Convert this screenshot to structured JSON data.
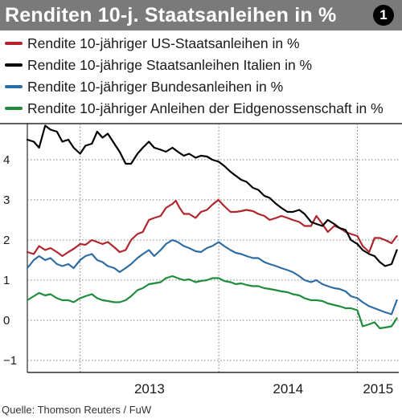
{
  "title": "Renditen 10-j. Staatsanleihen in %",
  "badge": "1",
  "source": "Quelle: Thomson Reuters / FuW",
  "chart_data": {
    "type": "line",
    "title": "Renditen 10-j. Staatsanleihen in %",
    "ylim": [
      -1.3,
      4.9
    ],
    "xlim": [
      "2012-08-15",
      "2015-04-20"
    ],
    "y_ticks": [
      4,
      3,
      2,
      1,
      0,
      -1
    ],
    "x_tick_labels": [
      "2013",
      "2014",
      "2015"
    ],
    "x_year_boundaries": [
      "2013-01-01",
      "2014-01-01",
      "2015-01-01"
    ],
    "grid": "horizontal dotted",
    "legend_position": "top",
    "series": [
      {
        "name": "Rendite 10-jähriger US-Staatsanleihen in %",
        "color": "#b0262c",
        "x": [
          "2012-08-15",
          "2012-09-01",
          "2012-09-15",
          "2012-10-01",
          "2012-10-15",
          "2012-11-01",
          "2012-11-15",
          "2012-12-01",
          "2012-12-15",
          "2013-01-01",
          "2013-01-15",
          "2013-02-01",
          "2013-02-15",
          "2013-03-01",
          "2013-03-15",
          "2013-04-01",
          "2013-04-15",
          "2013-05-01",
          "2013-05-15",
          "2013-06-01",
          "2013-06-15",
          "2013-07-01",
          "2013-07-15",
          "2013-08-01",
          "2013-08-15",
          "2013-09-01",
          "2013-09-10",
          "2013-09-20",
          "2013-10-01",
          "2013-10-15",
          "2013-11-01",
          "2013-11-15",
          "2013-12-01",
          "2013-12-15",
          "2013-12-31",
          "2014-01-15",
          "2014-02-01",
          "2014-02-15",
          "2014-03-01",
          "2014-03-15",
          "2014-04-01",
          "2014-04-15",
          "2014-05-01",
          "2014-05-15",
          "2014-06-01",
          "2014-06-15",
          "2014-07-01",
          "2014-07-15",
          "2014-08-01",
          "2014-08-15",
          "2014-09-01",
          "2014-09-15",
          "2014-10-01",
          "2014-10-15",
          "2014-11-01",
          "2014-11-15",
          "2014-12-01",
          "2014-12-15",
          "2015-01-01",
          "2015-01-15",
          "2015-02-01",
          "2015-02-15",
          "2015-03-01",
          "2015-03-15",
          "2015-04-01",
          "2015-04-15"
        ],
        "y": [
          1.7,
          1.65,
          1.85,
          1.75,
          1.8,
          1.7,
          1.6,
          1.7,
          1.78,
          1.9,
          1.88,
          2.0,
          1.95,
          1.9,
          1.95,
          1.82,
          1.7,
          1.75,
          2.0,
          2.15,
          2.2,
          2.5,
          2.55,
          2.6,
          2.8,
          2.9,
          2.98,
          2.8,
          2.65,
          2.65,
          2.55,
          2.7,
          2.75,
          2.88,
          3.0,
          2.85,
          2.7,
          2.7,
          2.72,
          2.75,
          2.72,
          2.65,
          2.6,
          2.5,
          2.55,
          2.6,
          2.55,
          2.5,
          2.45,
          2.35,
          2.35,
          2.6,
          2.4,
          2.2,
          2.35,
          2.3,
          2.2,
          2.15,
          2.1,
          1.85,
          1.7,
          2.05,
          2.05,
          2.0,
          1.92,
          2.1
        ]
      },
      {
        "name": "Rendite 10-jährige Staatsanleihen Italien in %",
        "color": "#000000",
        "x": [
          "2012-08-15",
          "2012-09-01",
          "2012-09-15",
          "2012-10-01",
          "2012-10-15",
          "2012-11-01",
          "2012-11-15",
          "2012-12-01",
          "2012-12-15",
          "2013-01-01",
          "2013-01-15",
          "2013-02-01",
          "2013-02-15",
          "2013-03-01",
          "2013-03-15",
          "2013-04-01",
          "2013-04-15",
          "2013-05-01",
          "2013-05-15",
          "2013-06-01",
          "2013-06-15",
          "2013-07-01",
          "2013-07-15",
          "2013-08-01",
          "2013-08-15",
          "2013-09-01",
          "2013-09-15",
          "2013-10-01",
          "2013-10-15",
          "2013-11-01",
          "2013-11-15",
          "2013-12-01",
          "2013-12-15",
          "2014-01-01",
          "2014-01-15",
          "2014-02-01",
          "2014-02-15",
          "2014-03-01",
          "2014-03-15",
          "2014-04-01",
          "2014-04-15",
          "2014-05-01",
          "2014-05-15",
          "2014-06-01",
          "2014-06-15",
          "2014-07-01",
          "2014-07-15",
          "2014-08-01",
          "2014-08-15",
          "2014-09-01",
          "2014-09-15",
          "2014-10-01",
          "2014-10-15",
          "2014-11-01",
          "2014-11-15",
          "2014-12-01",
          "2014-12-15",
          "2015-01-01",
          "2015-01-15",
          "2015-02-01",
          "2015-02-15",
          "2015-03-01",
          "2015-03-15",
          "2015-04-01",
          "2015-04-15"
        ],
        "y": [
          4.5,
          4.45,
          4.3,
          4.85,
          4.75,
          4.7,
          4.45,
          4.5,
          4.3,
          4.15,
          4.35,
          4.4,
          4.7,
          4.55,
          4.65,
          4.4,
          4.2,
          3.9,
          3.9,
          4.15,
          4.3,
          4.45,
          4.3,
          4.25,
          4.2,
          4.3,
          4.2,
          4.1,
          4.15,
          4.05,
          4.1,
          4.08,
          4.0,
          3.95,
          3.85,
          3.7,
          3.6,
          3.5,
          3.45,
          3.3,
          3.25,
          3.1,
          3.05,
          2.9,
          2.8,
          2.7,
          2.7,
          2.75,
          2.65,
          2.45,
          2.4,
          2.35,
          2.5,
          2.4,
          2.3,
          2.25,
          2.0,
          1.9,
          1.75,
          1.65,
          1.6,
          1.45,
          1.35,
          1.4,
          1.75
        ]
      },
      {
        "name": "Rendite 10-jähriger Bundesanleihen in %",
        "color": "#2e6ca4",
        "x": [
          "2012-08-15",
          "2012-09-01",
          "2012-09-15",
          "2012-10-01",
          "2012-10-15",
          "2012-11-01",
          "2012-11-15",
          "2012-12-01",
          "2012-12-15",
          "2013-01-01",
          "2013-01-15",
          "2013-02-01",
          "2013-02-15",
          "2013-03-01",
          "2013-03-15",
          "2013-04-01",
          "2013-04-15",
          "2013-05-01",
          "2013-05-15",
          "2013-06-01",
          "2013-06-15",
          "2013-07-01",
          "2013-07-15",
          "2013-08-01",
          "2013-08-15",
          "2013-09-01",
          "2013-09-15",
          "2013-10-01",
          "2013-10-15",
          "2013-11-01",
          "2013-11-15",
          "2013-12-01",
          "2013-12-15",
          "2014-01-01",
          "2014-01-15",
          "2014-02-01",
          "2014-02-15",
          "2014-03-01",
          "2014-03-15",
          "2014-04-01",
          "2014-04-15",
          "2014-05-01",
          "2014-05-15",
          "2014-06-01",
          "2014-06-15",
          "2014-07-01",
          "2014-07-15",
          "2014-08-01",
          "2014-08-15",
          "2014-09-01",
          "2014-09-15",
          "2014-10-01",
          "2014-10-15",
          "2014-11-01",
          "2014-11-15",
          "2014-12-01",
          "2014-12-15",
          "2015-01-01",
          "2015-01-15",
          "2015-02-01",
          "2015-02-15",
          "2015-03-01",
          "2015-03-15",
          "2015-04-01",
          "2015-04-15"
        ],
        "y": [
          1.3,
          1.5,
          1.6,
          1.5,
          1.55,
          1.4,
          1.35,
          1.4,
          1.3,
          1.5,
          1.6,
          1.65,
          1.5,
          1.45,
          1.35,
          1.3,
          1.2,
          1.3,
          1.4,
          1.55,
          1.65,
          1.75,
          1.6,
          1.75,
          1.9,
          2.0,
          1.95,
          1.85,
          1.8,
          1.72,
          1.7,
          1.8,
          1.85,
          1.95,
          1.85,
          1.75,
          1.68,
          1.65,
          1.6,
          1.55,
          1.55,
          1.45,
          1.4,
          1.35,
          1.3,
          1.25,
          1.2,
          1.1,
          1.0,
          0.95,
          1.0,
          0.9,
          0.85,
          0.8,
          0.78,
          0.72,
          0.6,
          0.55,
          0.45,
          0.35,
          0.3,
          0.25,
          0.2,
          0.15,
          0.5
        ]
      },
      {
        "name": "Rendite 10-jähriger Anleihen der Eidgenossenschaft in %",
        "color": "#1e8c3a",
        "x": [
          "2012-08-15",
          "2012-09-01",
          "2012-09-15",
          "2012-10-01",
          "2012-10-15",
          "2012-11-01",
          "2012-11-15",
          "2012-12-01",
          "2012-12-15",
          "2013-01-01",
          "2013-01-15",
          "2013-02-01",
          "2013-02-15",
          "2013-03-01",
          "2013-03-15",
          "2013-04-01",
          "2013-04-15",
          "2013-05-01",
          "2013-05-15",
          "2013-06-01",
          "2013-06-15",
          "2013-07-01",
          "2013-07-15",
          "2013-08-01",
          "2013-08-15",
          "2013-09-01",
          "2013-09-15",
          "2013-10-01",
          "2013-10-15",
          "2013-11-01",
          "2013-11-15",
          "2013-12-01",
          "2013-12-15",
          "2014-01-01",
          "2014-01-15",
          "2014-02-01",
          "2014-02-15",
          "2014-03-01",
          "2014-03-15",
          "2014-04-01",
          "2014-04-15",
          "2014-05-01",
          "2014-05-15",
          "2014-06-01",
          "2014-06-15",
          "2014-07-01",
          "2014-07-15",
          "2014-08-01",
          "2014-08-15",
          "2014-09-01",
          "2014-09-15",
          "2014-10-01",
          "2014-10-15",
          "2014-11-01",
          "2014-11-15",
          "2014-12-01",
          "2014-12-15",
          "2015-01-01",
          "2015-01-15",
          "2015-02-01",
          "2015-02-15",
          "2015-03-01",
          "2015-03-15",
          "2015-04-01",
          "2015-04-15"
        ],
        "y": [
          0.5,
          0.6,
          0.68,
          0.62,
          0.65,
          0.55,
          0.5,
          0.5,
          0.45,
          0.55,
          0.6,
          0.65,
          0.55,
          0.5,
          0.48,
          0.45,
          0.45,
          0.5,
          0.6,
          0.75,
          0.8,
          0.9,
          0.92,
          0.95,
          1.05,
          1.1,
          1.05,
          1.0,
          1.02,
          0.95,
          0.98,
          1.0,
          1.05,
          1.05,
          0.98,
          0.95,
          0.9,
          0.92,
          0.88,
          0.85,
          0.85,
          0.8,
          0.78,
          0.75,
          0.72,
          0.7,
          0.65,
          0.62,
          0.55,
          0.5,
          0.5,
          0.48,
          0.42,
          0.38,
          0.35,
          0.3,
          0.3,
          0.25,
          -0.15,
          -0.1,
          -0.05,
          -0.2,
          -0.18,
          -0.15,
          0.05
        ]
      }
    ]
  }
}
